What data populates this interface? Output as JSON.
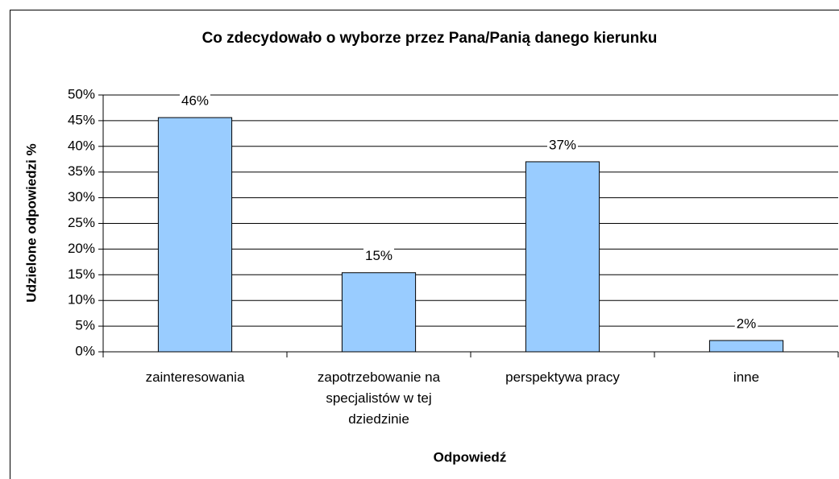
{
  "chart_data": {
    "type": "bar",
    "title": "Co zdecydowało o wyborze przez Pana/Panią danego kierunku",
    "x_label": "Odpowiedź",
    "y_label": "Udzielone odpowiedzi %",
    "categories": [
      "zainteresowania",
      "zapotrzebowanie na specjalistów w tej dziedzinie",
      "perspektywa pracy",
      "inne"
    ],
    "values": [
      45.6,
      15.4,
      37,
      2.2
    ],
    "value_labels": [
      "46%",
      "15%",
      "37%",
      "2%"
    ],
    "color": "#99ccff",
    "ylim": [
      0,
      50
    ],
    "yticks": [
      {
        "value": 0,
        "label": "0%"
      },
      {
        "value": 5,
        "label": "5%"
      },
      {
        "value": 10,
        "label": "10%"
      },
      {
        "value": 15,
        "label": "15%"
      },
      {
        "value": 20,
        "label": "20%"
      },
      {
        "value": 25,
        "label": "25%"
      },
      {
        "value": 30,
        "label": "30%"
      },
      {
        "value": 35,
        "label": "35%"
      },
      {
        "value": 40,
        "label": "40%"
      },
      {
        "value": 45,
        "label": "45%"
      },
      {
        "value": 50,
        "label": "50%"
      }
    ],
    "grid": true
  }
}
